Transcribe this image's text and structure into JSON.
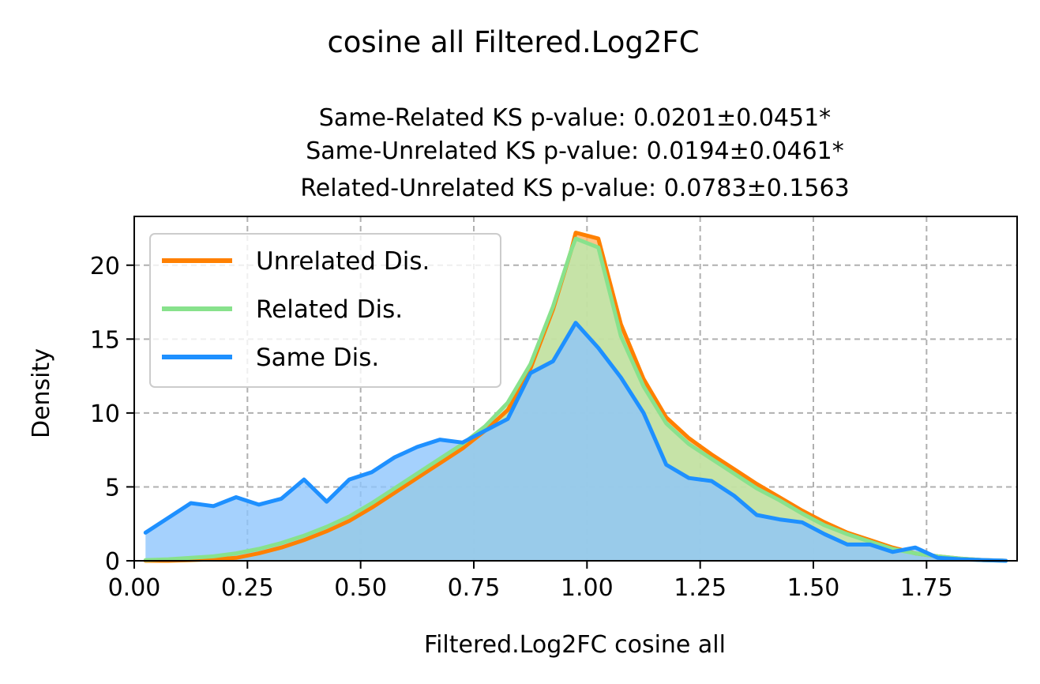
{
  "chart_data": {
    "type": "area",
    "suptitle": "cosine all Filtered.Log2FC",
    "title_lines": [
      "Same-Related KS p-value: 0.0201±0.0451*",
      "Same-Unrelated KS p-value: 0.0194±0.0461*",
      "Related-Unrelated KS p-value: 0.0783±0.1563"
    ],
    "xlabel": "Filtered.Log2FC cosine all",
    "ylabel": "Density",
    "xlim": [
      0.0,
      1.95
    ],
    "ylim": [
      0,
      23.3
    ],
    "xticks": [
      0.0,
      0.25,
      0.5,
      0.75,
      1.0,
      1.25,
      1.5,
      1.75
    ],
    "xtick_labels": [
      "0.00",
      "0.25",
      "0.50",
      "0.75",
      "1.00",
      "1.25",
      "1.50",
      "1.75"
    ],
    "yticks": [
      0,
      5,
      10,
      15,
      20
    ],
    "ytick_labels": [
      "0",
      "5",
      "10",
      "15",
      "20"
    ],
    "grid": true,
    "legend_position": "top-left",
    "series": [
      {
        "name": "Unrelated Dis.",
        "color": "#ff8000",
        "fill": "#ffb266",
        "x": [
          0.025,
          0.075,
          0.125,
          0.175,
          0.225,
          0.275,
          0.325,
          0.375,
          0.425,
          0.475,
          0.525,
          0.575,
          0.625,
          0.675,
          0.725,
          0.775,
          0.825,
          0.875,
          0.925,
          0.965,
          0.975,
          1.025,
          1.075,
          1.125,
          1.175,
          1.225,
          1.275,
          1.325,
          1.375,
          1.425,
          1.475,
          1.525,
          1.575,
          1.625,
          1.675,
          1.725,
          1.775,
          1.825,
          1.875,
          1.925
        ],
        "y": [
          0.0,
          0.0,
          0.05,
          0.1,
          0.2,
          0.5,
          0.9,
          1.4,
          2.0,
          2.7,
          3.6,
          4.6,
          5.6,
          6.6,
          7.6,
          8.8,
          10.2,
          13.0,
          17.0,
          21.0,
          22.2,
          21.8,
          16.0,
          12.3,
          9.7,
          8.3,
          7.2,
          6.2,
          5.2,
          4.3,
          3.4,
          2.6,
          1.9,
          1.4,
          0.9,
          0.5,
          0.3,
          0.15,
          0.05,
          0.0
        ]
      },
      {
        "name": "Related Dis.",
        "color": "#88e28c",
        "fill": "#b6ecb0",
        "x": [
          0.025,
          0.075,
          0.125,
          0.175,
          0.225,
          0.275,
          0.325,
          0.375,
          0.425,
          0.475,
          0.525,
          0.575,
          0.625,
          0.675,
          0.725,
          0.775,
          0.825,
          0.875,
          0.925,
          0.965,
          0.975,
          1.025,
          1.075,
          1.125,
          1.175,
          1.225,
          1.275,
          1.325,
          1.375,
          1.425,
          1.475,
          1.525,
          1.575,
          1.625,
          1.675,
          1.725,
          1.775,
          1.825,
          1.875,
          1.925
        ],
        "y": [
          0.05,
          0.1,
          0.2,
          0.3,
          0.5,
          0.8,
          1.2,
          1.7,
          2.3,
          3.0,
          3.9,
          4.9,
          5.9,
          6.9,
          7.9,
          9.1,
          10.7,
          13.3,
          17.2,
          21.0,
          21.8,
          21.2,
          15.2,
          11.8,
          9.3,
          7.9,
          6.9,
          5.9,
          4.9,
          4.1,
          3.2,
          2.4,
          1.8,
          1.3,
          0.8,
          0.5,
          0.3,
          0.15,
          0.05,
          0.0
        ]
      },
      {
        "name": "Same Dis.",
        "color": "#1e90ff",
        "fill": "#8cc4fc",
        "x": [
          0.025,
          0.075,
          0.125,
          0.175,
          0.225,
          0.275,
          0.325,
          0.375,
          0.425,
          0.475,
          0.525,
          0.575,
          0.625,
          0.675,
          0.725,
          0.775,
          0.825,
          0.875,
          0.925,
          0.975,
          1.025,
          1.075,
          1.125,
          1.175,
          1.225,
          1.275,
          1.325,
          1.375,
          1.425,
          1.475,
          1.525,
          1.575,
          1.625,
          1.675,
          1.725,
          1.775,
          1.825,
          1.875,
          1.925
        ],
        "y": [
          1.9,
          2.9,
          3.9,
          3.7,
          4.3,
          3.8,
          4.2,
          5.5,
          4.0,
          5.5,
          6.0,
          7.0,
          7.7,
          8.2,
          8.0,
          8.8,
          9.6,
          12.7,
          13.5,
          16.1,
          14.4,
          12.4,
          10.0,
          6.5,
          5.6,
          5.4,
          4.4,
          3.1,
          2.8,
          2.6,
          1.8,
          1.1,
          1.1,
          0.6,
          0.9,
          0.2,
          0.1,
          0.05,
          0.0
        ]
      }
    ]
  }
}
